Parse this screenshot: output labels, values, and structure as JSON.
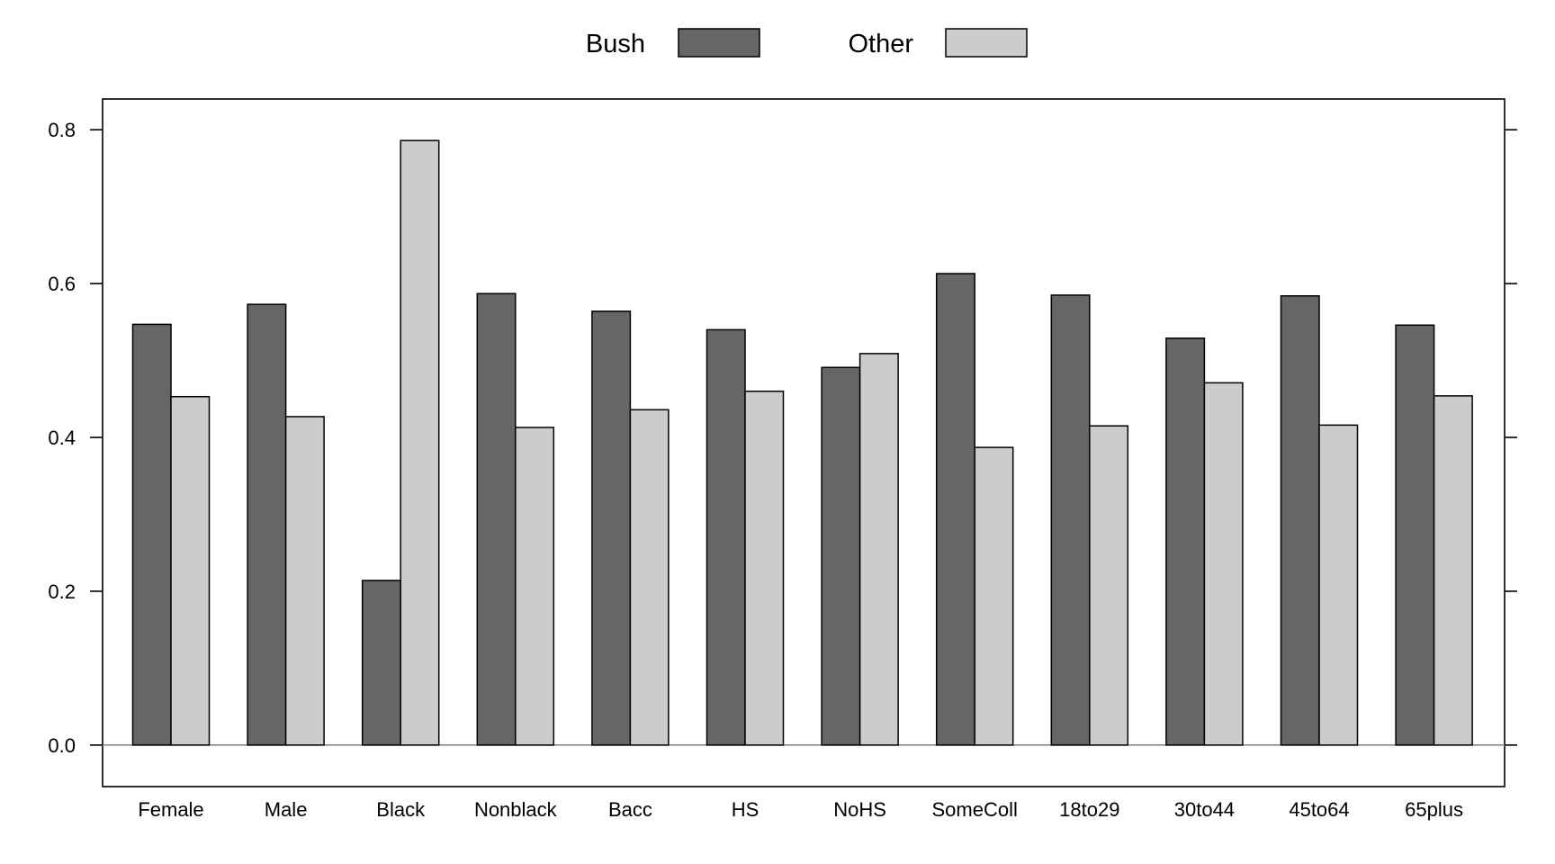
{
  "chart_data": {
    "type": "bar",
    "categories": [
      "Female",
      "Male",
      "Black",
      "Nonblack",
      "Bacc",
      "HS",
      "NoHS",
      "SomeColl",
      "18to29",
      "30to44",
      "45to64",
      "65plus"
    ],
    "series": [
      {
        "name": "Bush",
        "color": "#666666",
        "values": [
          0.547,
          0.573,
          0.214,
          0.587,
          0.564,
          0.54,
          0.491,
          0.613,
          0.585,
          0.529,
          0.584,
          0.546
        ]
      },
      {
        "name": "Other",
        "color": "#cccccc",
        "values": [
          0.453,
          0.427,
          0.786,
          0.413,
          0.436,
          0.46,
          0.509,
          0.387,
          0.415,
          0.471,
          0.416,
          0.454
        ]
      }
    ],
    "title": "",
    "xlabel": "",
    "ylabel": "",
    "ylim": [
      -0.054,
      0.84
    ],
    "yticks": [
      0.0,
      0.2,
      0.4,
      0.6,
      0.8
    ],
    "ytick_labels": [
      "0.0",
      "0.2",
      "0.4",
      "0.6",
      "0.8"
    ],
    "legend_position": "top-center",
    "grid": false,
    "baseline": 0.0
  }
}
